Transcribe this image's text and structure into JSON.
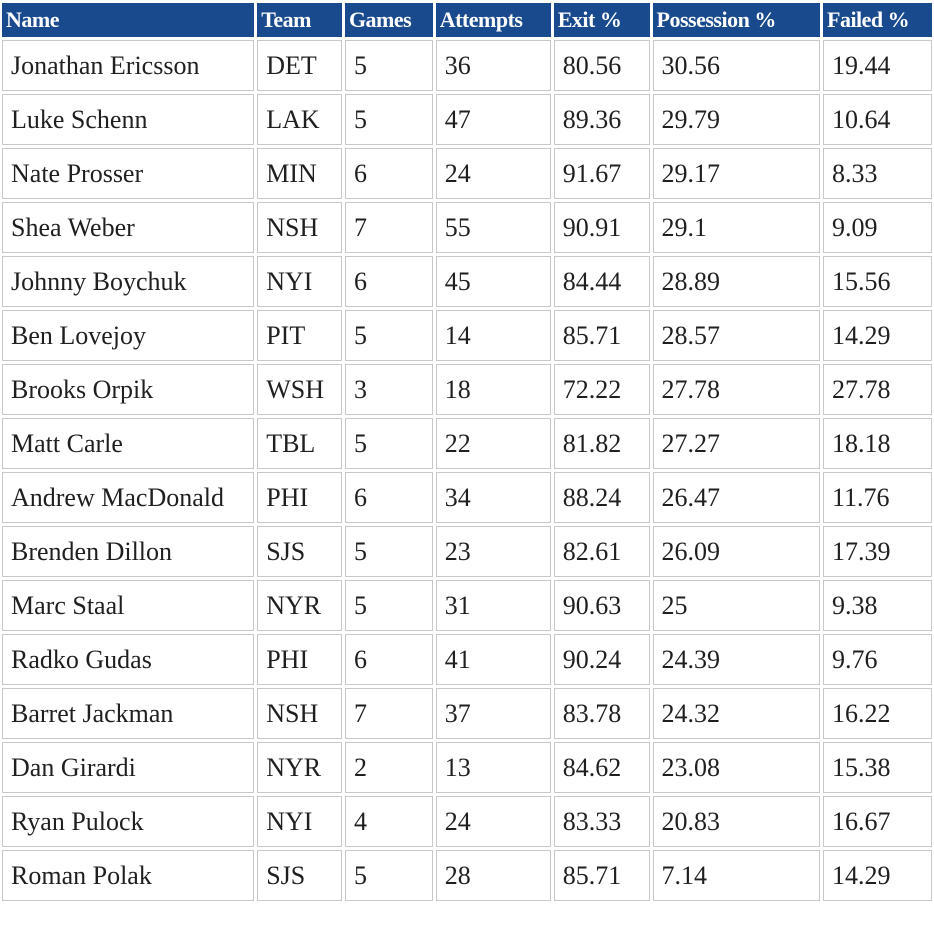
{
  "table": {
    "headers": [
      "Name",
      "Team",
      "Games",
      "Attempts",
      "Exit %",
      "Possession %",
      "Failed %"
    ],
    "rows": [
      [
        "Jonathan Ericsson",
        "DET",
        "5",
        "36",
        "80.56",
        "30.56",
        "19.44"
      ],
      [
        "Luke Schenn",
        "LAK",
        "5",
        "47",
        "89.36",
        "29.79",
        "10.64"
      ],
      [
        "Nate Prosser",
        "MIN",
        "6",
        "24",
        "91.67",
        "29.17",
        "8.33"
      ],
      [
        "Shea Weber",
        "NSH",
        "7",
        "55",
        "90.91",
        "29.1",
        "9.09"
      ],
      [
        "Johnny Boychuk",
        "NYI",
        "6",
        "45",
        "84.44",
        "28.89",
        "15.56"
      ],
      [
        "Ben Lovejoy",
        "PIT",
        "5",
        "14",
        "85.71",
        "28.57",
        "14.29"
      ],
      [
        "Brooks Orpik",
        "WSH",
        "3",
        "18",
        "72.22",
        "27.78",
        "27.78"
      ],
      [
        "Matt Carle",
        "TBL",
        "5",
        "22",
        "81.82",
        "27.27",
        "18.18"
      ],
      [
        "Andrew MacDonald",
        "PHI",
        "6",
        "34",
        "88.24",
        "26.47",
        "11.76"
      ],
      [
        "Brenden Dillon",
        "SJS",
        "5",
        "23",
        "82.61",
        "26.09",
        "17.39"
      ],
      [
        "Marc Staal",
        "NYR",
        "5",
        "31",
        "90.63",
        "25",
        "9.38"
      ],
      [
        "Radko Gudas",
        "PHI",
        "6",
        "41",
        "90.24",
        "24.39",
        "9.76"
      ],
      [
        "Barret Jackman",
        "NSH",
        "7",
        "37",
        "83.78",
        "24.32",
        "16.22"
      ],
      [
        "Dan Girardi",
        "NYR",
        "2",
        "13",
        "84.62",
        "23.08",
        "15.38"
      ],
      [
        "Ryan Pulock",
        "NYI",
        "4",
        "24",
        "83.33",
        "20.83",
        "16.67"
      ],
      [
        "Roman Polak",
        "SJS",
        "5",
        "28",
        "85.71",
        "7.14",
        "14.29"
      ]
    ]
  },
  "colors": {
    "header_background": "#1a4a8e",
    "header_text": "#ffffff",
    "cell_border": "#c8c8c8",
    "cell_text": "#1f1f1f"
  }
}
